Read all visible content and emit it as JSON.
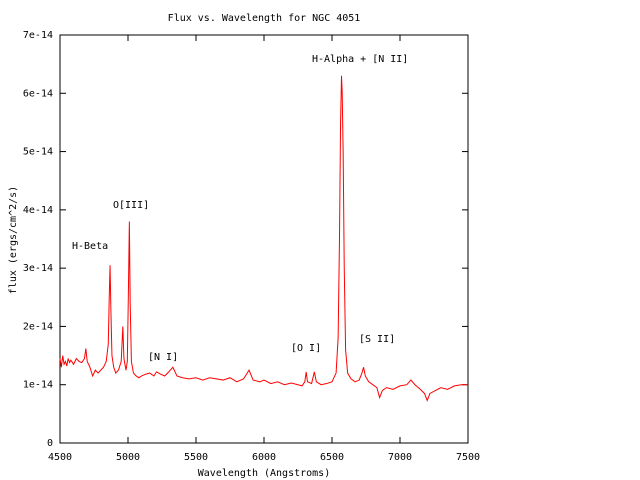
{
  "chart_data": {
    "type": "line",
    "title": "Flux vs. Wavelength for NGC 4051",
    "x_label": "Wavelength (Angstroms)",
    "y_label": "flux (ergs/cm^2/s)",
    "xlim": [
      4500,
      7500
    ],
    "xticks": [
      4500,
      5000,
      5500,
      6000,
      6500,
      7000,
      7500
    ],
    "ylim": [
      0,
      7e-14
    ],
    "yticks": [
      0,
      1e-14,
      2e-14,
      3e-14,
      4e-14,
      5e-14,
      6e-14,
      7e-14
    ],
    "grid": false,
    "annotations": [
      "H-Beta",
      "O[III]",
      "[N I]",
      "[O I]",
      "H-Alpha + [N II]",
      "[S II]"
    ],
    "x": [
      4500,
      4510,
      4520,
      4530,
      4540,
      4550,
      4560,
      4570,
      4580,
      4600,
      4620,
      4640,
      4660,
      4680,
      4690,
      4700,
      4720,
      4740,
      4760,
      4780,
      4800,
      4820,
      4840,
      4855,
      4862,
      4868,
      4874,
      4882,
      4895,
      4910,
      4930,
      4950,
      4962,
      4970,
      4985,
      4995,
      5003,
      5010,
      5016,
      5025,
      5040,
      5060,
      5080,
      5100,
      5130,
      5160,
      5190,
      5210,
      5240,
      5270,
      5300,
      5330,
      5360,
      5400,
      5450,
      5500,
      5550,
      5600,
      5650,
      5700,
      5750,
      5800,
      5850,
      5890,
      5920,
      5970,
      6000,
      6050,
      6100,
      6150,
      6200,
      6250,
      6280,
      6300,
      6310,
      6320,
      6350,
      6370,
      6385,
      6420,
      6460,
      6500,
      6530,
      6545,
      6555,
      6563,
      6570,
      6575,
      6582,
      6590,
      6600,
      6615,
      6640,
      6670,
      6700,
      6720,
      6732,
      6745,
      6770,
      6800,
      6830,
      6850,
      6870,
      6900,
      6950,
      7000,
      7050,
      7080,
      7110,
      7150,
      7180,
      7200,
      7220,
      7260,
      7300,
      7350,
      7400,
      7450,
      7500
    ],
    "series": [
      {
        "name": "flux",
        "color": "#ff0000",
        "values": [
          1.45e-14,
          1.3e-14,
          1.5e-14,
          1.35e-14,
          1.4e-14,
          1.32e-14,
          1.45e-14,
          1.38e-14,
          1.42e-14,
          1.35e-14,
          1.45e-14,
          1.4e-14,
          1.38e-14,
          1.45e-14,
          1.62e-14,
          1.4e-14,
          1.3e-14,
          1.15e-14,
          1.25e-14,
          1.2e-14,
          1.25e-14,
          1.3e-14,
          1.4e-14,
          1.7e-14,
          2.5e-14,
          3.05e-14,
          2.3e-14,
          1.5e-14,
          1.3e-14,
          1.2e-14,
          1.25e-14,
          1.4e-14,
          2e-14,
          1.45e-14,
          1.25e-14,
          1.4e-14,
          2.6e-14,
          3.8e-14,
          2.4e-14,
          1.4e-14,
          1.2e-14,
          1.15e-14,
          1.12e-14,
          1.15e-14,
          1.18e-14,
          1.2e-14,
          1.15e-14,
          1.22e-14,
          1.18e-14,
          1.15e-14,
          1.22e-14,
          1.3e-14,
          1.15e-14,
          1.12e-14,
          1.1e-14,
          1.12e-14,
          1.08e-14,
          1.12e-14,
          1.1e-14,
          1.08e-14,
          1.12e-14,
          1.05e-14,
          1.1e-14,
          1.25e-14,
          1.08e-14,
          1.05e-14,
          1.08e-14,
          1.02e-14,
          1.05e-14,
          1e-14,
          1.03e-14,
          1e-14,
          9.8e-15,
          1.05e-14,
          1.22e-14,
          1.05e-14,
          1.02e-14,
          1.22e-14,
          1.05e-14,
          1e-14,
          1.02e-14,
          1.05e-14,
          1.2e-14,
          1.8e-14,
          3.5e-14,
          5.5e-14,
          6.3e-14,
          6e-14,
          5e-14,
          3e-14,
          1.6e-14,
          1.2e-14,
          1.1e-14,
          1.05e-14,
          1.08e-14,
          1.2e-14,
          1.3e-14,
          1.15e-14,
          1.05e-14,
          1e-14,
          9.5e-15,
          7.8e-15,
          9e-15,
          9.5e-15,
          9.2e-15,
          9.8e-15,
          1e-14,
          1.08e-14,
          1e-14,
          9.2e-15,
          8.5e-15,
          7.3e-15,
          8.5e-15,
          9e-15,
          9.5e-15,
          9.2e-15,
          9.8e-15,
          1e-14,
          1e-14
        ]
      }
    ]
  }
}
